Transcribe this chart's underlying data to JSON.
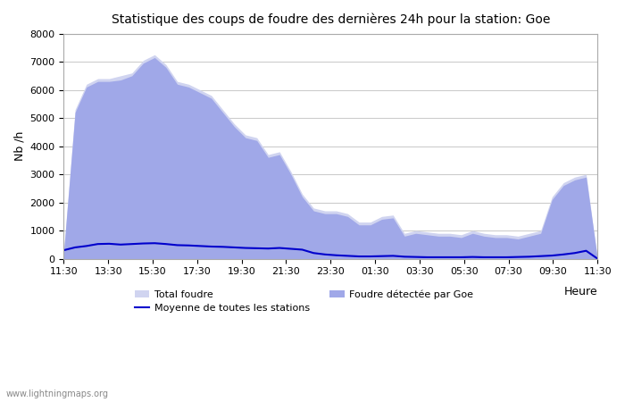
{
  "title": "Statistique des coups de foudre des dernières 24h pour la station: Goe",
  "xlabel": "Heure",
  "ylabel": "Nb /h",
  "xlim_labels": [
    "11:30",
    "13:30",
    "15:30",
    "17:30",
    "19:30",
    "21:30",
    "23:30",
    "01:30",
    "03:30",
    "05:30",
    "07:30",
    "09:30",
    "11:30"
  ],
  "ylim": [
    0,
    8000
  ],
  "yticks": [
    0,
    1000,
    2000,
    3000,
    4000,
    5000,
    6000,
    7000,
    8000
  ],
  "background_color": "#ffffff",
  "plot_bg_color": "#ffffff",
  "grid_color": "#cccccc",
  "total_foudre_color": "#d0d4f0",
  "foudre_goe_color": "#a0a8e8",
  "moyenne_color": "#0000cc",
  "watermark": "www.lightningmaps.org",
  "legend_total": "Total foudre",
  "legend_moyenne": "Moyenne de toutes les stations",
  "legend_goe": "Foudre détectée par Goe",
  "total_foudre": [
    300,
    5300,
    6200,
    6400,
    6400,
    6500,
    6600,
    7050,
    7250,
    6900,
    6300,
    6200,
    6000,
    5800,
    5300,
    4800,
    4400,
    4300,
    3700,
    3800,
    3100,
    2300,
    1800,
    1700,
    1700,
    1600,
    1300,
    1300,
    1500,
    1550,
    900,
    1000,
    950,
    900,
    900,
    850,
    1000,
    900,
    850,
    850,
    800,
    900,
    1000,
    2200,
    2700,
    2900,
    3000,
    0
  ],
  "foudre_goe": [
    250,
    5200,
    6100,
    6300,
    6300,
    6350,
    6500,
    6950,
    7150,
    6800,
    6200,
    6100,
    5900,
    5700,
    5200,
    4700,
    4300,
    4200,
    3600,
    3700,
    3000,
    2200,
    1700,
    1600,
    1600,
    1500,
    1200,
    1200,
    1400,
    1450,
    800,
    900,
    850,
    800,
    800,
    750,
    900,
    800,
    750,
    750,
    700,
    800,
    900,
    2100,
    2600,
    2800,
    2900,
    0
  ],
  "moyenne": [
    300,
    400,
    450,
    520,
    530,
    500,
    520,
    540,
    550,
    520,
    480,
    470,
    450,
    430,
    420,
    400,
    380,
    370,
    360,
    380,
    350,
    320,
    200,
    150,
    120,
    100,
    80,
    80,
    90,
    100,
    70,
    60,
    50,
    50,
    50,
    50,
    60,
    50,
    50,
    50,
    60,
    70,
    90,
    110,
    150,
    200,
    280,
    0
  ]
}
